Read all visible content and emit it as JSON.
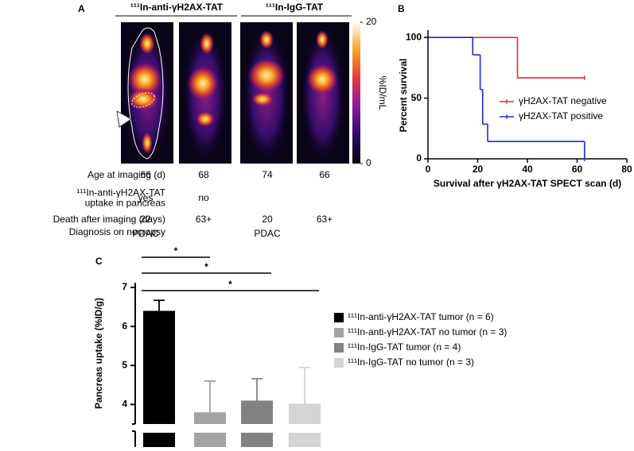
{
  "panel_labels": [
    "A",
    "B",
    "C"
  ],
  "panel_a": {
    "groups": [
      "¹¹¹In-anti-γH2AX-TAT",
      "¹¹¹In-IgG-TAT"
    ],
    "colorbar": {
      "label": "%ID/mL",
      "lim": [
        0,
        20
      ],
      "ticks": [
        0,
        20
      ]
    },
    "rows": [
      {
        "label": [
          "Age at imaging (d)"
        ],
        "values": [
          66,
          68,
          74,
          66
        ]
      },
      {
        "label": [
          "¹¹¹In-anti-γH2AX-TAT",
          "uptake in pancreas"
        ],
        "values": [
          "yes",
          "no",
          null,
          null
        ]
      },
      {
        "label": [
          "Death after imaging (days)"
        ],
        "values": [
          22,
          "63+",
          20,
          "63+"
        ]
      },
      {
        "label": [
          "Diagnosis on necropsy"
        ],
        "values": [
          "PDAC",
          null,
          "PDAC",
          null
        ]
      }
    ]
  },
  "chart_data": [
    {
      "type": "line",
      "step": true,
      "ylabel": "Percent survival",
      "xlabel": "Survival after γH2AX-TAT SPECT scan (d)",
      "xlim": [
        0,
        80
      ],
      "xticks": [
        0,
        20,
        40,
        60,
        80
      ],
      "ylim": [
        0,
        106
      ],
      "yticks": [
        0,
        50,
        100
      ],
      "legend": "center-right",
      "series": [
        {
          "name": "γH2AX-TAT negative",
          "color": "#e8262a",
          "x": [
            0,
            36,
            63
          ],
          "values": [
            100,
            66.7,
            66.7
          ]
        },
        {
          "name": "γH2AX-TAT positive",
          "color": "#1f2bd6",
          "x": [
            0,
            18,
            21,
            22,
            24,
            63
          ],
          "values": [
            100,
            85.7,
            57.1,
            28.6,
            14.3,
            0
          ]
        }
      ]
    },
    {
      "type": "bar",
      "ylabel": "Pancreas uptake (%ID/g)",
      "ylim": [
        3.5,
        7
      ],
      "yticks": [
        4,
        5,
        6,
        7
      ],
      "axis_break": true,
      "annotations": [
        "*",
        "*",
        "*"
      ],
      "legend": "right",
      "series": [
        {
          "name": "¹¹¹In-anti-γH2AX-TAT  tumor     (n = 6)",
          "color": "#000000",
          "values": [
            6.4
          ],
          "errors": [
            0.27
          ]
        },
        {
          "name": "¹¹¹In-anti-γH2AX-TAT  no tumor  (n = 3)",
          "color": "#a3a3a3",
          "values": [
            3.8
          ],
          "errors": [
            0.8
          ]
        },
        {
          "name": "¹¹¹In-IgG-TAT  tumor  (n = 4)",
          "color": "#828282",
          "values": [
            4.1
          ],
          "errors": [
            0.56
          ]
        },
        {
          "name": "¹¹¹In-IgG-TAT  no tumor  (n = 3)",
          "color": "#d4d4d4",
          "values": [
            4.02
          ],
          "errors": [
            0.93
          ]
        }
      ]
    }
  ]
}
